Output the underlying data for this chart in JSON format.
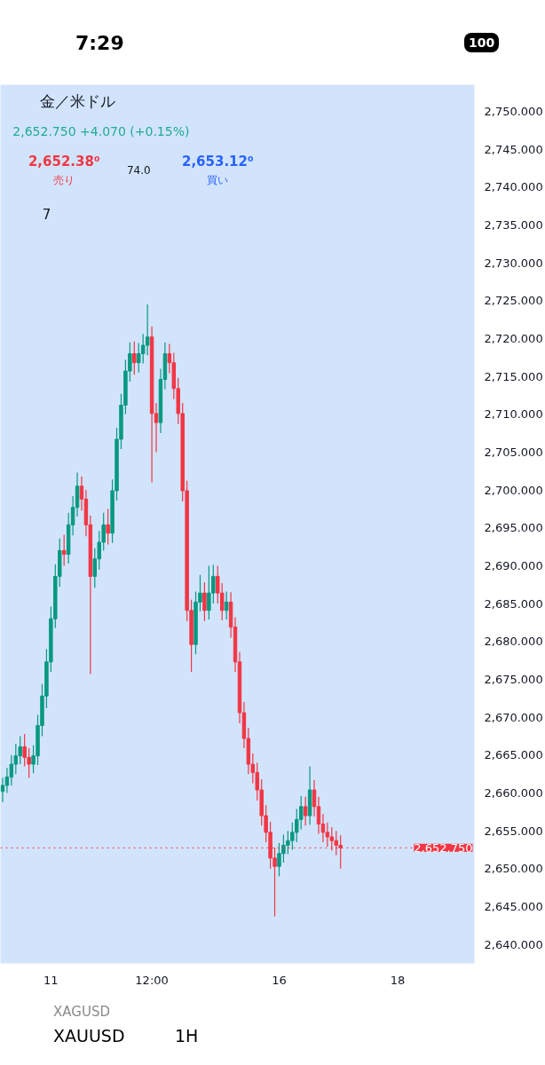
{
  "chart_data": {
    "type": "candlestick",
    "title": "金／米ドル",
    "subtitle": "2,652.750 +4.070 (+0.15%)",
    "annotations": [
      "2,652.38⁰",
      "売り",
      "74.0",
      "2,653.12⁰",
      "買い",
      "7",
      "7:29",
      "100",
      "XAGUSD",
      "XAUUSD",
      "1H"
    ],
    "colors": [
      "#089981",
      "#089981",
      "#089981",
      "#089981",
      "#089981",
      "#f23645",
      "#f23645",
      "#089981",
      "#089981",
      "#089981",
      "#089981",
      "#089981",
      "#089981",
      "#089981",
      "#f23645",
      "#089981",
      "#089981",
      "#089981",
      "#f23645",
      "#f23645",
      "#f23645",
      "#089981",
      "#089981",
      "#089981",
      "#f23645",
      "#089981",
      "#089981",
      "#089981",
      "#089981",
      "#089981",
      "#f23645",
      "#089981",
      "#089981",
      "#089981",
      "#f23645",
      "#f23645",
      "#089981",
      "#089981",
      "#f23645",
      "#f23645",
      "#f23645",
      "#f23645",
      "#f23645",
      "#f23645",
      "#089981",
      "#089981",
      "#f23645",
      "#089981",
      "#089981",
      "#f23645",
      "#f23645",
      "#089981",
      "#f23645",
      "#f23645",
      "#f23645",
      "#f23645",
      "#f23645",
      "#f23645",
      "#f23645",
      "#f23645",
      "#f23645",
      "#f23645",
      "#f23645",
      "#089981",
      "#089981",
      "#089981",
      "#089981",
      "#089981",
      "#089981",
      "#f23645",
      "#089981",
      "#f23645",
      "#f23645",
      "#f23645",
      "#f23645",
      "#f23645",
      "#f23645",
      "#f23645",
      null,
      null,
      null,
      null,
      null,
      null,
      null,
      null,
      null,
      null,
      null,
      null,
      null,
      null,
      null,
      null,
      null,
      null,
      null,
      null,
      null,
      null,
      null,
      null,
      null,
      null,
      null,
      null,
      null,
      null
    ],
    "categories": [
      null,
      null,
      null,
      null,
      null,
      null,
      null,
      null,
      null,
      null,
      null,
      "11",
      null,
      null,
      null,
      null,
      null,
      null,
      null,
      null,
      null,
      null,
      null,
      null,
      null,
      null,
      null,
      null,
      null,
      null,
      null,
      null,
      null,
      null,
      "12:00",
      null,
      null,
      null,
      null,
      null,
      null,
      null,
      null,
      null,
      null,
      null,
      null,
      null,
      null,
      null,
      null,
      null,
      null,
      null,
      null,
      null,
      null,
      null,
      null,
      null,
      null,
      null,
      null,
      "16",
      null,
      null,
      null,
      null,
      null,
      null,
      null,
      null,
      null,
      null,
      null,
      null,
      null,
      null,
      null,
      null,
      null,
      null,
      null,
      null,
      null,
      null,
      null,
      null,
      null,
      null,
      "18",
      null,
      null,
      null,
      null,
      null,
      null,
      null,
      null,
      null,
      null,
      null,
      null,
      null,
      null,
      null,
      null,
      null
    ],
    "ohlc": [
      [
        2660.2,
        2662.0,
        2658.8,
        2661.0
      ],
      [
        2661.0,
        2663.3,
        2660.0,
        2662.1
      ],
      [
        2662.1,
        2665.0,
        2661.0,
        2663.8
      ],
      [
        2663.8,
        2666.5,
        2662.5,
        2664.9
      ],
      [
        2664.9,
        2667.5,
        2663.8,
        2666.1
      ],
      [
        2666.1,
        2667.8,
        2663.5,
        2664.7
      ],
      [
        2664.7,
        2665.9,
        2662.0,
        2663.8
      ],
      [
        2663.8,
        2666.3,
        2662.6,
        2664.9
      ],
      [
        2664.9,
        2670.3,
        2663.7,
        2668.9
      ],
      [
        2668.9,
        2674.4,
        2667.5,
        2672.8
      ],
      [
        2672.8,
        2679.0,
        2671.2,
        2677.3
      ],
      [
        2677.3,
        2684.6,
        2676.0,
        2683.0
      ],
      [
        2683.0,
        2690.2,
        2681.8,
        2688.6
      ],
      [
        2688.6,
        2693.6,
        2687.2,
        2692.0
      ],
      [
        2692.0,
        2694.1,
        2690.0,
        2691.5
      ],
      [
        2691.5,
        2697.0,
        2690.3,
        2695.4
      ],
      [
        2695.4,
        2699.2,
        2694.0,
        2697.7
      ],
      [
        2697.7,
        2702.3,
        2696.5,
        2700.5
      ],
      [
        2700.5,
        2701.8,
        2697.3,
        2698.8
      ],
      [
        2698.8,
        2700.0,
        2693.9,
        2695.4
      ],
      [
        2695.4,
        2696.6,
        2675.7,
        2688.6
      ],
      [
        2688.6,
        2692.3,
        2687.1,
        2690.9
      ],
      [
        2690.9,
        2694.6,
        2689.5,
        2693.1
      ],
      [
        2693.1,
        2697.0,
        2692.0,
        2695.4
      ],
      [
        2695.4,
        2697.5,
        2692.8,
        2694.3
      ],
      [
        2694.3,
        2701.4,
        2693.0,
        2699.9
      ],
      [
        2699.9,
        2708.2,
        2698.6,
        2706.7
      ],
      [
        2706.7,
        2712.7,
        2705.4,
        2711.2
      ],
      [
        2711.2,
        2717.2,
        2710.0,
        2715.7
      ],
      [
        2715.7,
        2719.5,
        2714.3,
        2718.0
      ],
      [
        2718.0,
        2719.6,
        2715.2,
        2716.8
      ],
      [
        2716.8,
        2719.4,
        2715.5,
        2718.0
      ],
      [
        2718.0,
        2720.6,
        2716.7,
        2719.1
      ],
      [
        2719.1,
        2724.5,
        2717.8,
        2720.2
      ],
      [
        2720.2,
        2721.6,
        2701.0,
        2710.1
      ],
      [
        2710.1,
        2711.5,
        2705.0,
        2708.9
      ],
      [
        2708.9,
        2716.0,
        2707.5,
        2714.6
      ],
      [
        2714.6,
        2719.5,
        2713.3,
        2718.0
      ],
      [
        2718.0,
        2719.3,
        2715.4,
        2716.8
      ],
      [
        2716.8,
        2718.1,
        2712.0,
        2713.4
      ],
      [
        2713.4,
        2714.8,
        2708.7,
        2710.1
      ],
      [
        2710.1,
        2711.5,
        2698.5,
        2699.9
      ],
      [
        2699.9,
        2701.2,
        2682.7,
        2684.1
      ],
      [
        2684.1,
        2685.5,
        2676.0,
        2679.6
      ],
      [
        2679.6,
        2686.6,
        2678.3,
        2685.2
      ],
      [
        2685.2,
        2688.8,
        2684.0,
        2686.4
      ],
      [
        2686.4,
        2687.8,
        2682.7,
        2684.1
      ],
      [
        2684.1,
        2690.0,
        2682.9,
        2686.4
      ],
      [
        2686.4,
        2690.1,
        2685.0,
        2688.6
      ],
      [
        2688.6,
        2690.0,
        2685.0,
        2686.4
      ],
      [
        2686.4,
        2687.7,
        2682.8,
        2684.1
      ],
      [
        2684.1,
        2686.6,
        2682.9,
        2685.2
      ],
      [
        2685.2,
        2686.5,
        2680.5,
        2681.9
      ],
      [
        2681.9,
        2683.2,
        2676.0,
        2677.3
      ],
      [
        2677.3,
        2678.6,
        2669.2,
        2670.6
      ],
      [
        2670.6,
        2672.0,
        2665.9,
        2667.2
      ],
      [
        2667.2,
        2668.6,
        2662.5,
        2663.8
      ],
      [
        2663.8,
        2665.2,
        2661.3,
        2662.7
      ],
      [
        2662.7,
        2664.0,
        2659.0,
        2660.4
      ],
      [
        2660.4,
        2661.8,
        2655.7,
        2657.0
      ],
      [
        2657.0,
        2658.4,
        2653.5,
        2654.8
      ],
      [
        2654.8,
        2656.2,
        2650.0,
        2651.4
      ],
      [
        2651.4,
        2652.8,
        2643.7,
        2650.3
      ],
      [
        2650.3,
        2653.4,
        2649.0,
        2652.0
      ],
      [
        2652.0,
        2654.5,
        2650.8,
        2653.1
      ],
      [
        2653.1,
        2655.0,
        2651.9,
        2653.7
      ],
      [
        2653.7,
        2656.1,
        2652.5,
        2654.8
      ],
      [
        2654.8,
        2657.9,
        2653.5,
        2656.5
      ],
      [
        2656.5,
        2659.6,
        2655.2,
        2658.2
      ],
      [
        2658.2,
        2659.5,
        2655.7,
        2657.0
      ],
      [
        2657.0,
        2663.5,
        2655.8,
        2660.4
      ],
      [
        2660.4,
        2661.7,
        2656.9,
        2658.2
      ],
      [
        2658.2,
        2659.5,
        2654.6,
        2655.9
      ],
      [
        2655.9,
        2657.2,
        2653.5,
        2654.8
      ],
      [
        2654.8,
        2656.1,
        2652.9,
        2654.2
      ],
      [
        2654.2,
        2655.5,
        2652.4,
        2653.7
      ],
      [
        2653.7,
        2655.0,
        2651.8,
        2653.1
      ],
      [
        2653.1,
        2654.4,
        2650.0,
        2652.75
      ],
      null,
      null,
      null,
      null,
      null,
      null,
      null,
      null,
      null,
      null,
      null,
      null,
      null,
      null,
      null,
      null,
      null,
      null,
      null,
      null,
      null,
      null,
      null,
      null,
      null,
      null,
      null,
      null,
      null,
      null
    ],
    "ylim": [
      2637.5,
      2753.5
    ],
    "yticks": [
      {
        "value": 2640,
        "label": "2,640.000"
      },
      {
        "value": 2645,
        "label": "2,645.000"
      },
      {
        "value": 2650,
        "label": "2,650.000"
      },
      {
        "value": 2655,
        "label": "2,655.000"
      },
      {
        "value": 2660,
        "label": "2,660.000"
      },
      {
        "value": 2665,
        "label": "2,665.000"
      },
      {
        "value": 2670,
        "label": "2,670.000"
      },
      {
        "value": 2675,
        "label": "2,675.000"
      },
      {
        "value": 2680,
        "label": "2,680.000"
      },
      {
        "value": 2685,
        "label": "2,685.000"
      },
      {
        "value": 2690,
        "label": "2,690.000"
      },
      {
        "value": 2695,
        "label": "2,695.000"
      },
      {
        "value": 2700,
        "label": "2,700.000"
      },
      {
        "value": 2705,
        "label": "2,705.000"
      },
      {
        "value": 2710,
        "label": "2,710.000"
      },
      {
        "value": 2715,
        "label": "2,715.000"
      },
      {
        "value": 2720,
        "label": "2,720.000"
      },
      {
        "value": 2725,
        "label": "2,725.000"
      },
      {
        "value": 2730,
        "label": "2,730.000"
      },
      {
        "value": 2735,
        "label": "2,735.000"
      },
      {
        "value": 2740,
        "label": "2,740.000"
      },
      {
        "value": 2745,
        "label": "2,745.000"
      },
      {
        "value": 2750,
        "label": "2,750.000"
      }
    ],
    "ref_lines": [
      {
        "axis": "y",
        "value": 2652.75,
        "label": "2,652.750",
        "color": "#f23645",
        "line_style": "dotted"
      }
    ],
    "grid": false
  }
}
